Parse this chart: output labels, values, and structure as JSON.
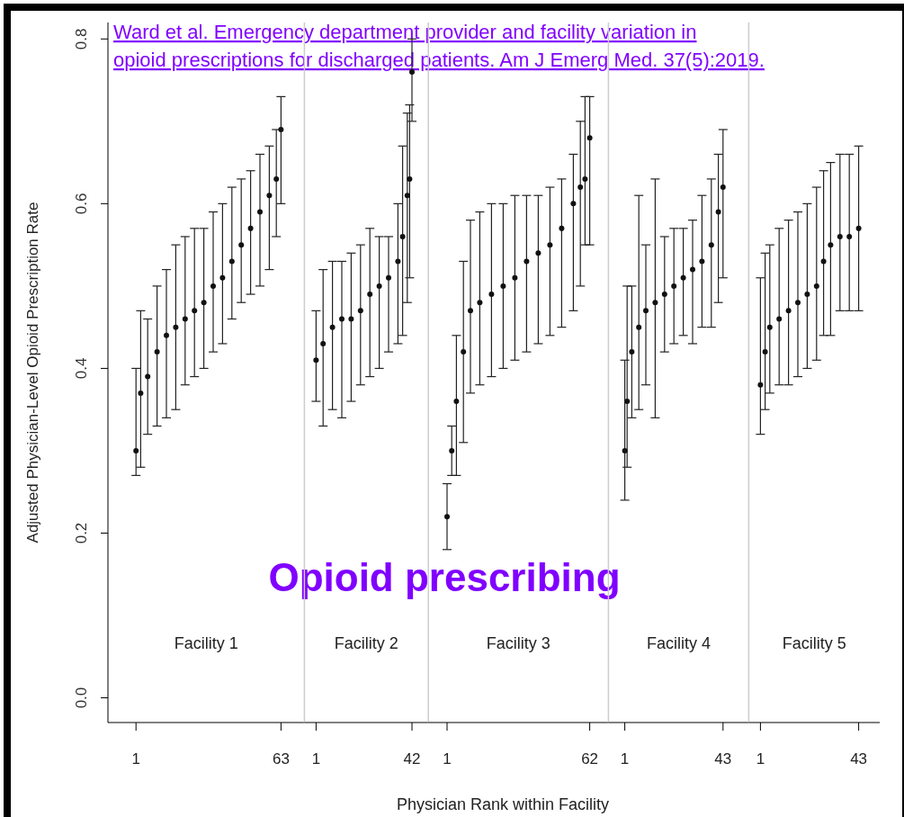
{
  "chart_data": [
    {
      "type": "scatter",
      "title": "Facility 1",
      "ylabel": "Adjusted Physician-Level Opioid Prescription Rate",
      "annotations": [
        "Ward et al. Emergency department provider and facility variation in opioid prescriptions for discharged patients. Am J Emerg Med. 37(5):2019.",
        "Opioid prescribing"
      ],
      "xlim": [
        -11,
        73
      ],
      "xticks": [
        1,
        63
      ],
      "ylim": [
        -0.03,
        0.82
      ],
      "yticks": [
        {
          "value": 0,
          "label": "0.0"
        },
        0.2,
        0.4,
        0.6,
        0.8
      ],
      "marker": "circle",
      "color": "#111111",
      "x": [
        1,
        3,
        6,
        10,
        14,
        18,
        22,
        26,
        30,
        34,
        38,
        42,
        46,
        50,
        54,
        58,
        61,
        63
      ],
      "values": [
        0.3,
        0.37,
        0.39,
        0.42,
        0.44,
        0.45,
        0.46,
        0.47,
        0.48,
        0.5,
        0.51,
        0.53,
        0.55,
        0.57,
        0.59,
        0.61,
        0.63,
        0.69
      ],
      "errors": [
        [
          0.27,
          0.4
        ],
        [
          0.28,
          0.47
        ],
        [
          0.32,
          0.46
        ],
        [
          0.33,
          0.5
        ],
        [
          0.34,
          0.52
        ],
        [
          0.35,
          0.55
        ],
        [
          0.38,
          0.56
        ],
        [
          0.39,
          0.57
        ],
        [
          0.4,
          0.57
        ],
        [
          0.42,
          0.59
        ],
        [
          0.43,
          0.6
        ],
        [
          0.46,
          0.62
        ],
        [
          0.48,
          0.63
        ],
        [
          0.49,
          0.64
        ],
        [
          0.5,
          0.66
        ],
        [
          0.52,
          0.67
        ],
        [
          0.56,
          0.69
        ],
        [
          0.6,
          0.73
        ]
      ]
    },
    {
      "type": "scatter",
      "title": "Facility 2",
      "xlim": [
        -4,
        49
      ],
      "xticks": [
        1,
        42
      ],
      "ylim": [
        -0.03,
        0.82
      ],
      "tick_labels": "x",
      "marker": "circle",
      "color": "#111111",
      "x": [
        1,
        4,
        8,
        12,
        16,
        20,
        24,
        28,
        32,
        36,
        38,
        40,
        41,
        42
      ],
      "values": [
        0.41,
        0.43,
        0.45,
        0.46,
        0.46,
        0.47,
        0.49,
        0.5,
        0.51,
        0.53,
        0.56,
        0.61,
        0.63,
        0.76
      ],
      "errors": [
        [
          0.36,
          0.47
        ],
        [
          0.33,
          0.52
        ],
        [
          0.35,
          0.53
        ],
        [
          0.34,
          0.53
        ],
        [
          0.36,
          0.54
        ],
        [
          0.38,
          0.55
        ],
        [
          0.39,
          0.57
        ],
        [
          0.4,
          0.56
        ],
        [
          0.42,
          0.56
        ],
        [
          0.43,
          0.6
        ],
        [
          0.44,
          0.67
        ],
        [
          0.48,
          0.71
        ],
        [
          0.51,
          0.72
        ],
        [
          0.7,
          0.8
        ]
      ]
    },
    {
      "type": "scatter",
      "title": "Facility 3",
      "xlabel": "Physician Rank within Facility",
      "xlim": [
        -7,
        70
      ],
      "xticks": [
        1,
        62
      ],
      "ylim": [
        -0.03,
        0.82
      ],
      "tick_labels": "x",
      "marker": "circle",
      "color": "#111111",
      "x": [
        1,
        3,
        5,
        8,
        11,
        15,
        20,
        25,
        30,
        35,
        40,
        45,
        50,
        55,
        58,
        60,
        62
      ],
      "values": [
        0.22,
        0.3,
        0.36,
        0.42,
        0.47,
        0.48,
        0.49,
        0.5,
        0.51,
        0.53,
        0.54,
        0.55,
        0.57,
        0.6,
        0.62,
        0.63,
        0.68
      ],
      "errors": [
        [
          0.18,
          0.26
        ],
        [
          0.27,
          0.33
        ],
        [
          0.27,
          0.44
        ],
        [
          0.31,
          0.53
        ],
        [
          0.37,
          0.58
        ],
        [
          0.38,
          0.59
        ],
        [
          0.39,
          0.6
        ],
        [
          0.4,
          0.6
        ],
        [
          0.41,
          0.61
        ],
        [
          0.42,
          0.61
        ],
        [
          0.43,
          0.61
        ],
        [
          0.44,
          0.62
        ],
        [
          0.45,
          0.63
        ],
        [
          0.47,
          0.66
        ],
        [
          0.5,
          0.7
        ],
        [
          0.55,
          0.73
        ],
        [
          0.55,
          0.73
        ]
      ]
    },
    {
      "type": "scatter",
      "title": "Facility 4",
      "xlim": [
        -6,
        54
      ],
      "xticks": [
        1,
        43
      ],
      "ylim": [
        -0.03,
        0.82
      ],
      "tick_labels": "x",
      "marker": "circle",
      "color": "#111111",
      "x": [
        1,
        2,
        4,
        7,
        10,
        14,
        18,
        22,
        26,
        30,
        34,
        38,
        41,
        43
      ],
      "values": [
        0.3,
        0.36,
        0.42,
        0.45,
        0.47,
        0.48,
        0.49,
        0.5,
        0.51,
        0.52,
        0.53,
        0.55,
        0.59,
        0.62
      ],
      "errors": [
        [
          0.24,
          0.41
        ],
        [
          0.28,
          0.5
        ],
        [
          0.34,
          0.5
        ],
        [
          0.35,
          0.61
        ],
        [
          0.38,
          0.55
        ],
        [
          0.34,
          0.63
        ],
        [
          0.42,
          0.56
        ],
        [
          0.43,
          0.57
        ],
        [
          0.44,
          0.57
        ],
        [
          0.43,
          0.58
        ],
        [
          0.45,
          0.61
        ],
        [
          0.45,
          0.63
        ],
        [
          0.48,
          0.66
        ],
        [
          0.51,
          0.69
        ]
      ]
    },
    {
      "type": "scatter",
      "title": "Facility 5",
      "xlim": [
        -4,
        52
      ],
      "xticks": [
        1,
        43
      ],
      "ylim": [
        -0.03,
        0.82
      ],
      "tick_labels": "x",
      "marker": "circle",
      "color": "#111111",
      "x": [
        1,
        3,
        5,
        9,
        13,
        17,
        21,
        25,
        28,
        31,
        35,
        39,
        43
      ],
      "values": [
        0.38,
        0.42,
        0.45,
        0.46,
        0.47,
        0.48,
        0.49,
        0.5,
        0.53,
        0.55,
        0.56,
        0.56,
        0.57
      ],
      "errors": [
        [
          0.32,
          0.51
        ],
        [
          0.35,
          0.54
        ],
        [
          0.37,
          0.55
        ],
        [
          0.38,
          0.57
        ],
        [
          0.38,
          0.58
        ],
        [
          0.39,
          0.59
        ],
        [
          0.4,
          0.6
        ],
        [
          0.41,
          0.62
        ],
        [
          0.44,
          0.64
        ],
        [
          0.44,
          0.65
        ],
        [
          0.47,
          0.66
        ],
        [
          0.47,
          0.66
        ],
        [
          0.47,
          0.67
        ]
      ]
    }
  ]
}
